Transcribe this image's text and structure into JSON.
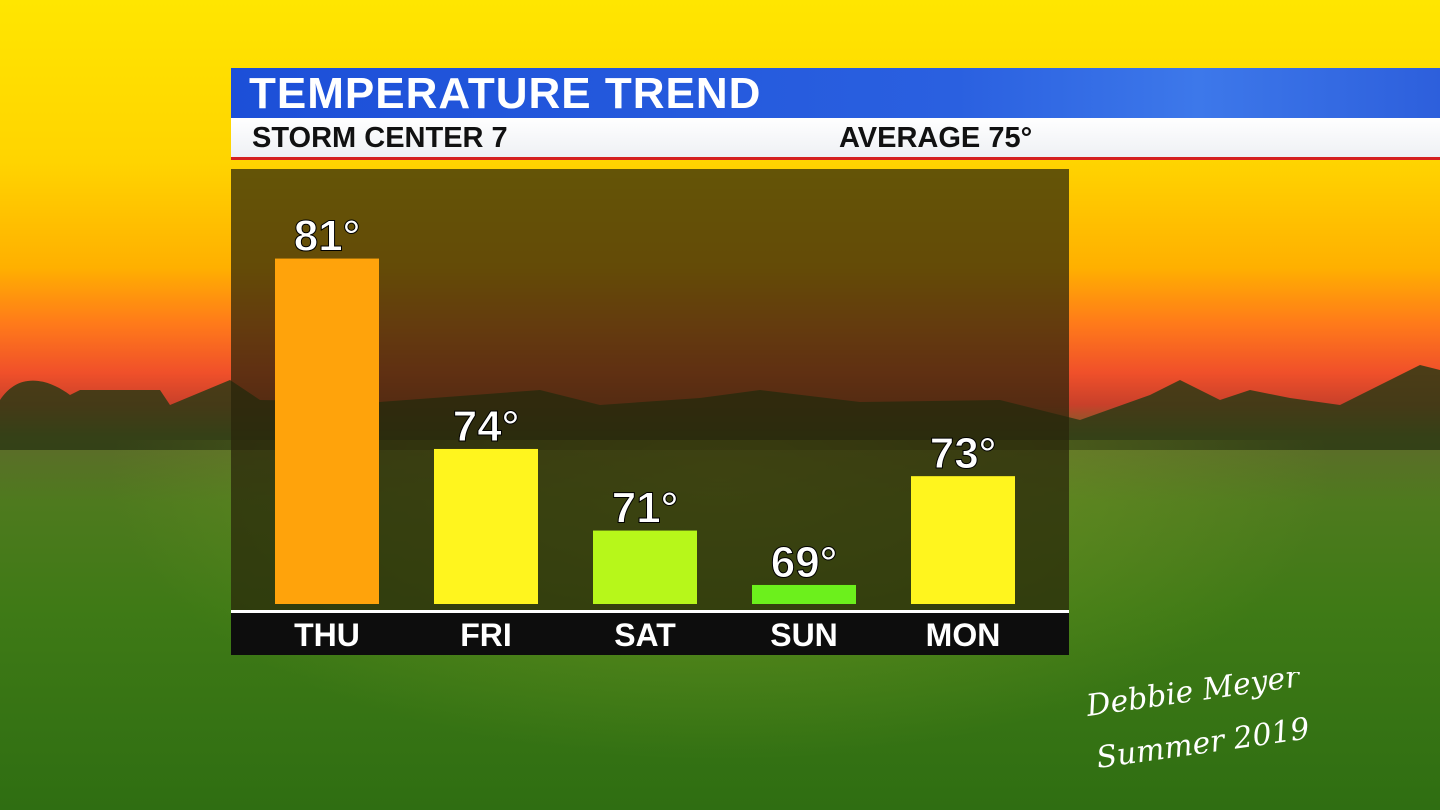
{
  "banner": {
    "title": "TEMPERATURE TREND",
    "station": "STORM CENTER 7",
    "average": "AVERAGE 75°"
  },
  "signature": {
    "line1": "Debbie Meyer",
    "line2": "Summer 2019"
  },
  "colors": {
    "banner_blue": "#1c4fd8",
    "accent_red": "#d42020",
    "bar_thu": "#ffa30b",
    "bar_fri": "#fff51e",
    "bar_sat": "#b7f71a",
    "bar_sun": "#6cf01c",
    "bar_mon": "#fff51e"
  },
  "chart_data": {
    "type": "bar",
    "categories": [
      "THU",
      "FRI",
      "SAT",
      "SUN",
      "MON"
    ],
    "values": [
      81,
      74,
      71,
      69,
      73
    ],
    "data_labels": [
      "81°",
      "74°",
      "71°",
      "69°",
      "73°"
    ],
    "bar_colors": [
      "#ffa30b",
      "#fff51e",
      "#b7f71a",
      "#6cf01c",
      "#fff51e"
    ],
    "title": "TEMPERATURE TREND",
    "xlabel": "",
    "ylabel": "",
    "grid": false,
    "legend": "none"
  }
}
